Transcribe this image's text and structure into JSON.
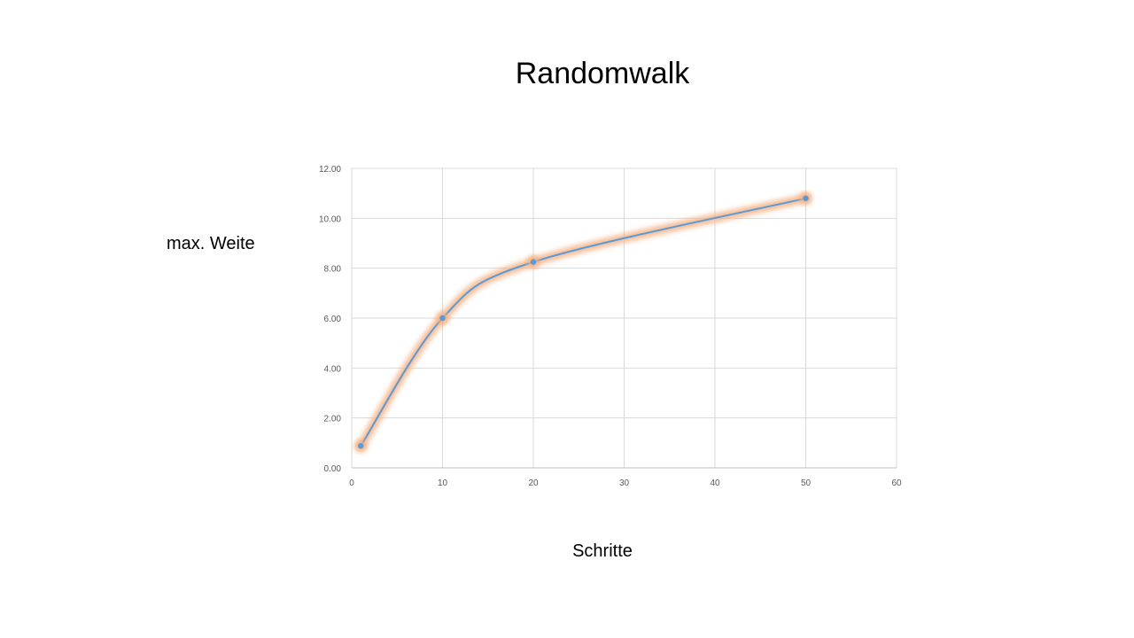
{
  "chart_data": {
    "type": "scatter",
    "title": "Randomwalk",
    "xlabel": "Schritte",
    "ylabel": "max. Weite",
    "x": [
      1,
      10,
      20,
      50
    ],
    "y": [
      0.88,
      6.0,
      8.25,
      10.8
    ],
    "xlim": [
      0,
      60
    ],
    "ylim": [
      0,
      12
    ],
    "x_ticks": [
      "0",
      "10",
      "20",
      "30",
      "40",
      "50",
      "60"
    ],
    "y_ticks": [
      "0.00",
      "2.00",
      "4.00",
      "6.00",
      "8.00",
      "10.00",
      "12.00"
    ],
    "smooth_line": true,
    "grid": true,
    "legend": "none",
    "colors": {
      "line": "#5b9bd5",
      "glow": "#f4b183",
      "grid": "#d9d9d9",
      "axis": "#bfbfbf"
    }
  }
}
